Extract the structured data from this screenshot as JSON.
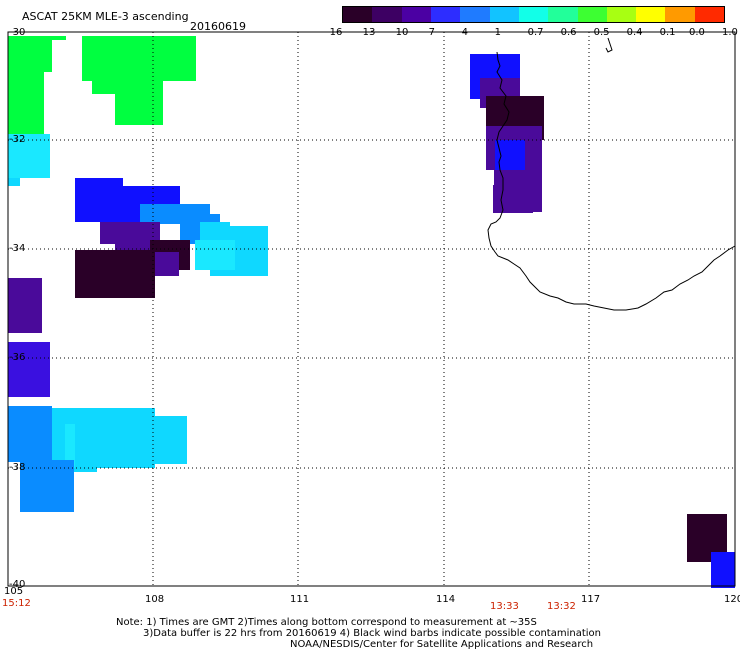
{
  "header": {
    "title": "ASCAT 25KM MLE-3 ascending",
    "date": "20160619"
  },
  "colorbar": {
    "labels": [
      "-16",
      "-13",
      "-10",
      "-7",
      "-4",
      "-1",
      "-0.7",
      "-0.6",
      "-0.5",
      "-0.4",
      "-0.1",
      "0.0",
      "1.0"
    ],
    "colors": [
      "#2a0028",
      "#3d0063",
      "#4b00a3",
      "#2d2dff",
      "#1f7bff",
      "#12c3ff",
      "#12ffe8",
      "#22ff9a",
      "#3dff32",
      "#a8ff12",
      "#ffff00",
      "#ff9a00",
      "#ff2a00"
    ]
  },
  "axes": {
    "x_ticks": [
      "105",
      "108",
      "111",
      "114",
      "117",
      "120"
    ],
    "y_ticks": [
      "-30",
      "-32",
      "-34",
      "-36",
      "-38",
      "-40"
    ]
  },
  "time_labels": [
    "15:12",
    "13:33",
    "13:32"
  ],
  "footer": {
    "note_line1": "Note: 1) Times are GMT 2)Times along bottom correspond to measurement at ~35S",
    "note_line2": "3)Data buffer is 22 hrs from 20160619 4) Black wind barbs indicate possible contamination",
    "credit": "NOAA/NESDIS/Center for Satellite Applications and Research"
  },
  "map_colors": {
    "green": "#00ff40",
    "cyan_light": "#1ae8ff",
    "cyan": "#0fd8ff",
    "blue_mid": "#0a8cff",
    "blue": "#1010ff",
    "blue_violet": "#3a10e0",
    "violet": "#4a0a9a",
    "dark_purple": "#2a0028",
    "coast": "#000000"
  }
}
